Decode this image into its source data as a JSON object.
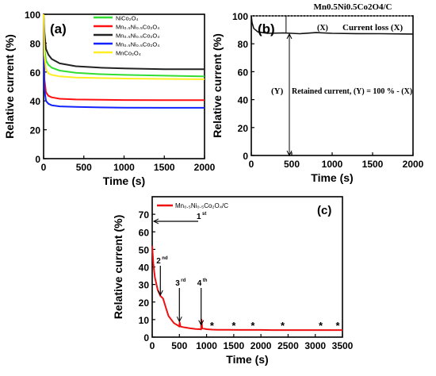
{
  "chart_data": [
    {
      "panel": "(a)",
      "type": "line",
      "xlabel": "Time (s)",
      "ylabel": "Relative current (%)",
      "xlim": [
        0,
        2000
      ],
      "ylim": [
        0,
        100
      ],
      "xticks": [
        0,
        500,
        1000,
        1500,
        2000
      ],
      "yticks": [
        0,
        20,
        40,
        60,
        80,
        100
      ],
      "legend_placement": "top-right",
      "series": [
        {
          "name": "NiCo₂O₄",
          "color": "#33dd33",
          "x": [
            0,
            10,
            30,
            60,
            100,
            200,
            400,
            700,
            1000,
            1500,
            2000
          ],
          "values": [
            100,
            77,
            68,
            65,
            63,
            61,
            59.5,
            58.5,
            58,
            57.5,
            57
          ]
        },
        {
          "name": "Mn₀.₅Ni₀.₅Co₂O₄",
          "color": "#ff1111",
          "x": [
            0,
            10,
            30,
            60,
            100,
            200,
            400,
            700,
            1000,
            1500,
            2000
          ],
          "values": [
            100,
            55,
            46,
            43.5,
            42.5,
            41.5,
            41,
            40.8,
            40.6,
            40.5,
            40.5
          ]
        },
        {
          "name": "Mn₀.₅Ni₀.₅Co₂O₄",
          "color": "#222222",
          "x": [
            0,
            10,
            30,
            60,
            100,
            200,
            400,
            700,
            1000,
            1500,
            2000
          ],
          "values": [
            100,
            88,
            76,
            72,
            69,
            66,
            64,
            63,
            62.5,
            62,
            62
          ]
        },
        {
          "name": "Mn₀.₅Ni₀.₅Co₂O₄",
          "color": "#1122ff",
          "x": [
            0,
            10,
            30,
            60,
            100,
            200,
            400,
            700,
            1000,
            1500,
            2000
          ],
          "values": [
            100,
            48,
            40,
            38,
            37,
            36.2,
            35.8,
            35.5,
            35.3,
            35.2,
            35.2
          ]
        },
        {
          "name": "MnCo₂O₄",
          "color": "#ffee22",
          "x": [
            0,
            10,
            30,
            60,
            100,
            200,
            400,
            700,
            1000,
            1500,
            2000
          ],
          "values": [
            100,
            72,
            62,
            59,
            58,
            57,
            56.2,
            55.8,
            55.5,
            55.2,
            55
          ]
        }
      ]
    },
    {
      "panel": "(b)",
      "type": "line",
      "title": "Mn0.5Ni0.5Co2O4/C",
      "xlabel": "Time (s)",
      "ylabel": "Relative current (%)",
      "xlim": [
        0,
        2000
      ],
      "ylim": [
        0,
        100
      ],
      "xticks": [
        0,
        500,
        1000,
        1500,
        2000
      ],
      "yticks": [
        0,
        20,
        40,
        60,
        80,
        100
      ],
      "series": [
        {
          "name": "",
          "color": "#111111",
          "x": [
            0,
            10,
            30,
            80,
            200,
            400,
            600,
            800,
            1000,
            1300,
            1600,
            2000
          ],
          "values": [
            100,
            95,
            91,
            88.5,
            87.5,
            87.8,
            87.2,
            88,
            87.5,
            87.3,
            87.2,
            87
          ]
        }
      ],
      "annotations": {
        "loss_label": "(X)",
        "loss_text": "Current loss (X)",
        "retained_label": "(Y)",
        "retained_text": "Retained current, (Y) = 100 % - (X)"
      }
    },
    {
      "panel": "(c)",
      "type": "line",
      "xlabel": "Time (s)",
      "ylabel": "Relative current (%)",
      "xlim": [
        0,
        3500
      ],
      "ylim": [
        0,
        80
      ],
      "xticks": [
        0,
        500,
        1000,
        1500,
        2000,
        2500,
        3000,
        3500
      ],
      "yticks": [
        0,
        10,
        20,
        30,
        40,
        50,
        60,
        70
      ],
      "legend_placement": "top-left",
      "series": [
        {
          "name": "Mn₀.₅Ni₀.₅Co₂O₄/C",
          "color": "#ee1111",
          "x": [
            0,
            20,
            50,
            100,
            150,
            200,
            250,
            300,
            400,
            480,
            500,
            505,
            520,
            600,
            700,
            800,
            880,
            900,
            905,
            920,
            1000,
            1100,
            1200,
            1400,
            1600,
            1800,
            2000,
            2200,
            2400,
            2600,
            2800,
            3000,
            3200,
            3400,
            3500
          ],
          "values": [
            52,
            42,
            34,
            27,
            23.5,
            22,
            17,
            12,
            8,
            6.5,
            6,
            8.5,
            6,
            5.5,
            5,
            4.6,
            4.5,
            4.4,
            10,
            5,
            4.5,
            4.3,
            4.2,
            4.2,
            4.1,
            4.1,
            4.1,
            4.0,
            4.0,
            4.0,
            4.0,
            4.0,
            4.0,
            4.0,
            4.0
          ]
        }
      ],
      "annotations": {
        "refresh_labels": [
          {
            "num": "1",
            "sup": "st",
            "x": 0,
            "y": 66
          },
          {
            "num": "2",
            "sup": "nd",
            "x": 150,
            "y": 23
          },
          {
            "num": "3",
            "sup": "rd",
            "x": 500,
            "y": 8
          },
          {
            "num": "4",
            "sup": "th",
            "x": 900,
            "y": 6
          }
        ],
        "star_label": "*",
        "star_x": [
          1100,
          1500,
          1850,
          2400,
          3100,
          3500
        ]
      }
    }
  ],
  "labels": {
    "panel_a": "(a)",
    "panel_b": "(b)",
    "panel_c": "(c)"
  }
}
